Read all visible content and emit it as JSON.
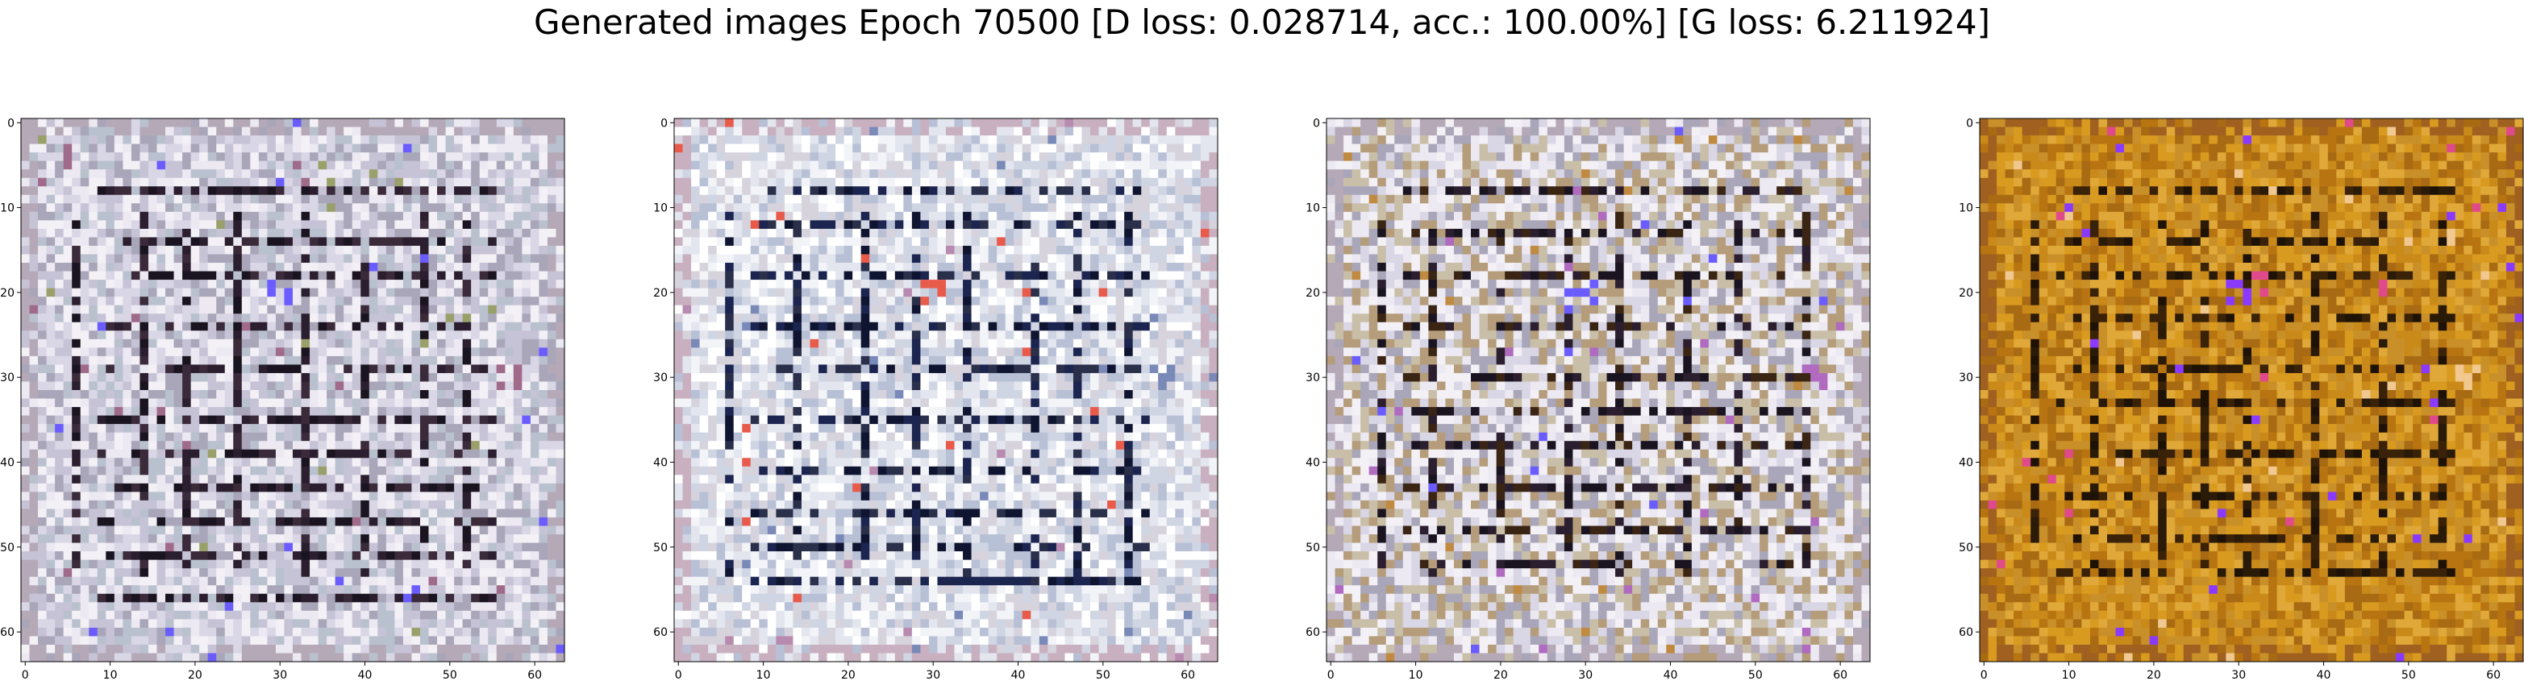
{
  "figure": {
    "title": "Generated images Epoch 70500 [D loss: 0.028714, acc.: 100.00%] [G loss: 6.211924]"
  },
  "tick_labels": {
    "x": [
      "0",
      "10",
      "20",
      "30",
      "40",
      "50",
      "60"
    ],
    "y": [
      "0",
      "10",
      "20",
      "30",
      "40",
      "50",
      "60"
    ]
  },
  "panels": [
    {
      "id": "sample-1",
      "palette": [
        "#d9d6e6",
        "#ece9f2",
        "#c7c3d6",
        "#a8a6b8",
        "#f3f1f6",
        "#b9c1cf"
      ],
      "dark": [
        "#1a1420",
        "#3a2a3a",
        "#2b1e2e"
      ],
      "accent": [
        "#6a5cff",
        "#9aa06a",
        "#a06a8a"
      ],
      "border": "#b5a9b8"
    },
    {
      "id": "sample-2",
      "palette": [
        "#e3e6ef",
        "#f2f4f8",
        "#cfd5e3",
        "#b8c0d6",
        "#ffffff",
        "#d6d3dd"
      ],
      "dark": [
        "#0f1530",
        "#1c2450",
        "#2a2f4a"
      ],
      "accent": [
        "#e85a4a",
        "#b98ab0",
        "#7a8ab8"
      ],
      "border": "#c9b0c0"
    },
    {
      "id": "sample-3",
      "palette": [
        "#d9d6e6",
        "#ece9f2",
        "#c9bfa8",
        "#b59c7a",
        "#f3f1f6",
        "#a8a6b8"
      ],
      "dark": [
        "#1a1420",
        "#3a2414",
        "#2b1e2e"
      ],
      "accent": [
        "#6a5cff",
        "#c08a40",
        "#b06ac0"
      ],
      "border": "#b5a9b8"
    },
    {
      "id": "sample-4",
      "palette": [
        "#c98a1a",
        "#d99a20",
        "#b87410",
        "#e0a838",
        "#a86a12",
        "#c9902a"
      ],
      "dark": [
        "#2a1a08",
        "#3a2208",
        "#1e1206"
      ],
      "accent": [
        "#8a3aff",
        "#e04a8a",
        "#f0c890"
      ],
      "border": "#a06020"
    }
  ]
}
